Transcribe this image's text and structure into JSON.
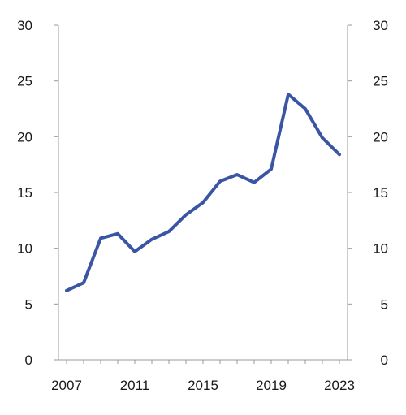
{
  "chart_data": {
    "type": "line",
    "title": "",
    "xlabel": "",
    "ylabel": "",
    "x": [
      2007,
      2008,
      2009,
      2010,
      2011,
      2012,
      2013,
      2014,
      2015,
      2016,
      2017,
      2018,
      2019,
      2020,
      2021,
      2022,
      2023
    ],
    "x_ticks": [
      "2007",
      "2011",
      "2015",
      "2019",
      "2023"
    ],
    "y_ticks_left": [
      "0",
      "5",
      "10",
      "15",
      "20",
      "25",
      "30"
    ],
    "y_ticks_right": [
      "0",
      "5",
      "10",
      "15",
      "20",
      "25",
      "30"
    ],
    "ylim": [
      0,
      30
    ],
    "xlim": [
      2007,
      2023
    ],
    "grid": false,
    "legend": "none",
    "series": [
      {
        "color": "#3a55a4",
        "values": [
          6.2,
          6.9,
          10.9,
          11.3,
          9.7,
          10.8,
          11.5,
          13.0,
          14.1,
          16.0,
          16.6,
          15.9,
          17.1,
          23.8,
          22.5,
          19.9,
          18.4
        ]
      }
    ],
    "axis_color": "#9a9a9a"
  }
}
